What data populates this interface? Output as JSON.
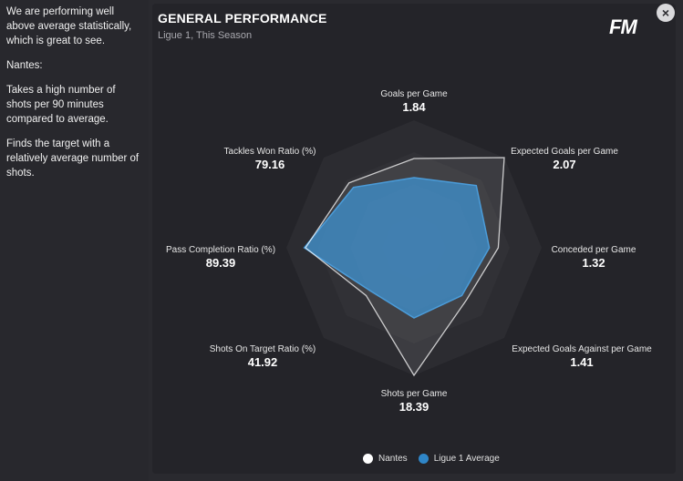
{
  "notes": {
    "paragraphs": [
      "We are performing well above average statistically, which is great to see.",
      "Nantes:",
      "Takes a high number of shots per 90 minutes compared to average.",
      "Finds the target with a relatively average number of shots."
    ]
  },
  "panel": {
    "title": "GENERAL PERFORMANCE",
    "subtitle": "Ligue 1, This Season",
    "logo": "FM",
    "close_icon": "×"
  },
  "colors": {
    "team": "#ffffff",
    "average": "#2f86c8",
    "background": "#242429"
  },
  "chart_data": {
    "type": "radar",
    "axes": [
      {
        "label": "Goals per Game",
        "value": "1.84"
      },
      {
        "label": "Expected Goals per Game",
        "value": "2.07"
      },
      {
        "label": "Conceded per Game",
        "value": "1.32"
      },
      {
        "label": "Expected Goals Against per Game",
        "value": "1.41"
      },
      {
        "label": "Shots per Game",
        "value": "18.39"
      },
      {
        "label": "Shots On Target Ratio (%)",
        "value": "41.92"
      },
      {
        "label": "Pass Completion Ratio (%)",
        "value": "89.39"
      },
      {
        "label": "Tackles Won Ratio (%)",
        "value": "79.16"
      }
    ],
    "series": [
      {
        "name": "Nantes",
        "normalized": [
          0.7,
          1.0,
          0.66,
          0.58,
          1.0,
          0.53,
          0.85,
          0.72
        ]
      },
      {
        "name": "Ligue 1 Average",
        "normalized": [
          0.55,
          0.69,
          0.59,
          0.53,
          0.55,
          0.48,
          0.86,
          0.67
        ]
      }
    ],
    "rings": 4
  },
  "legend": {
    "team_label": "Nantes",
    "average_label": "Ligue 1 Average"
  }
}
